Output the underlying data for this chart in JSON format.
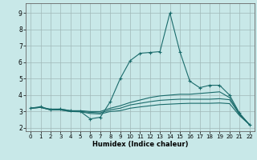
{
  "xlabel": "Humidex (Indice chaleur)",
  "background_color": "#c8e8e8",
  "grid_color": "#a0b8b8",
  "line_color": "#1a6b6b",
  "xlim": [
    -0.5,
    22.5
  ],
  "ylim": [
    1.8,
    9.6
  ],
  "xticks": [
    0,
    1,
    2,
    3,
    4,
    5,
    6,
    7,
    8,
    9,
    10,
    11,
    12,
    13,
    14,
    15,
    16,
    17,
    18,
    19,
    20,
    21,
    22
  ],
  "yticks": [
    2,
    3,
    4,
    5,
    6,
    7,
    8,
    9
  ],
  "lines": [
    {
      "x": [
        0,
        1,
        2,
        3,
        4,
        5,
        6,
        7,
        8,
        9,
        10,
        11,
        12,
        13,
        14,
        15,
        16,
        17,
        18,
        19,
        20,
        21,
        22
      ],
      "y": [
        3.2,
        3.3,
        3.1,
        3.15,
        3.05,
        3.0,
        2.55,
        2.65,
        3.6,
        5.0,
        6.1,
        6.55,
        6.6,
        6.65,
        9.0,
        6.65,
        4.85,
        4.45,
        4.6,
        4.6,
        4.0,
        2.9,
        2.2
      ],
      "marker": true
    },
    {
      "x": [
        0,
        1,
        2,
        3,
        4,
        5,
        6,
        7,
        8,
        9,
        10,
        11,
        12,
        13,
        14,
        15,
        16,
        17,
        18,
        19,
        20,
        21,
        22
      ],
      "y": [
        3.2,
        3.25,
        3.15,
        3.15,
        3.05,
        3.05,
        3.0,
        3.0,
        3.2,
        3.35,
        3.55,
        3.7,
        3.85,
        3.95,
        4.0,
        4.05,
        4.05,
        4.1,
        4.15,
        4.2,
        3.85,
        2.85,
        2.2
      ],
      "marker": false
    },
    {
      "x": [
        0,
        1,
        2,
        3,
        4,
        5,
        6,
        7,
        8,
        9,
        10,
        11,
        12,
        13,
        14,
        15,
        16,
        17,
        18,
        19,
        20,
        21,
        22
      ],
      "y": [
        3.2,
        3.25,
        3.1,
        3.1,
        3.0,
        3.0,
        2.95,
        2.92,
        3.1,
        3.2,
        3.4,
        3.5,
        3.6,
        3.68,
        3.72,
        3.75,
        3.75,
        3.75,
        3.75,
        3.78,
        3.72,
        2.82,
        2.2
      ],
      "marker": false
    },
    {
      "x": [
        0,
        1,
        2,
        3,
        4,
        5,
        6,
        7,
        8,
        9,
        10,
        11,
        12,
        13,
        14,
        15,
        16,
        17,
        18,
        19,
        20,
        21,
        22
      ],
      "y": [
        3.2,
        3.25,
        3.1,
        3.1,
        3.0,
        2.98,
        2.88,
        2.85,
        3.0,
        3.05,
        3.2,
        3.28,
        3.35,
        3.42,
        3.45,
        3.48,
        3.5,
        3.5,
        3.5,
        3.52,
        3.48,
        2.75,
        2.2
      ],
      "marker": false
    }
  ]
}
